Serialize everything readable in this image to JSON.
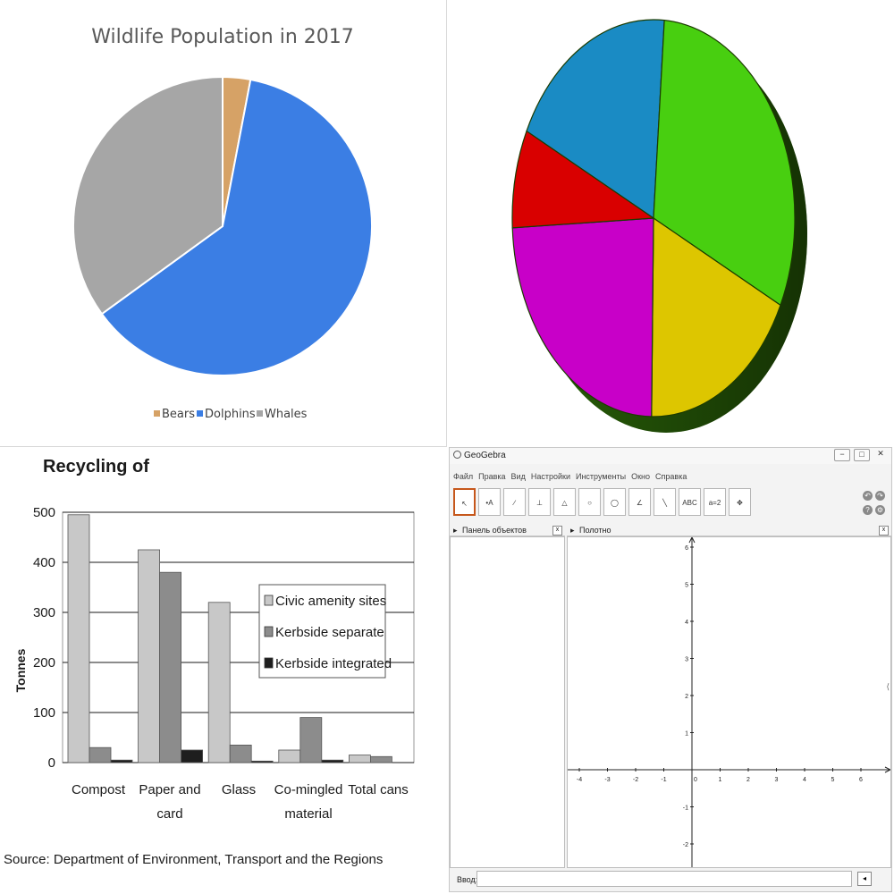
{
  "chart_data": [
    {
      "type": "pie",
      "title": "Wildlife Population in 2017",
      "categories": [
        "Bears",
        "Dolphins",
        "Whales"
      ],
      "values": [
        3,
        62,
        35
      ],
      "colors": [
        "#d6a266",
        "#3b7ee4",
        "#a6a6a6"
      ],
      "legend_position": "bottom"
    },
    {
      "type": "pie",
      "style": "3d",
      "title": "",
      "values": [
        19,
        31,
        18,
        24,
        8
      ],
      "colors": [
        "#1a8bc4",
        "#48cf10",
        "#ddc600",
        "#c800c8",
        "#d90000"
      ]
    },
    {
      "type": "bar",
      "title": "Recycling of",
      "ylabel": "Tonnes",
      "xlabel": "",
      "ylim": [
        0,
        500
      ],
      "yticks": [
        0,
        100,
        200,
        300,
        400,
        500
      ],
      "categories": [
        "Compost",
        "Paper and card",
        "Glass",
        "Co-mingled material",
        "Total cans"
      ],
      "series": [
        {
          "name": "Civic amenity sites",
          "values": [
            495,
            425,
            320,
            25,
            15
          ],
          "color": "#c8c8c8"
        },
        {
          "name": "Kerbside separate",
          "values": [
            30,
            380,
            35,
            90,
            12
          ],
          "color": "#8c8c8c"
        },
        {
          "name": "Kerbside integrated",
          "values": [
            5,
            25,
            3,
            5,
            0
          ],
          "color": "#1e1e1e"
        }
      ],
      "grid": true,
      "legend_position": "right",
      "source": "Source: Department of Environment, Transport and the Regions"
    }
  ],
  "geogebra": {
    "title": "GeoGebra",
    "window_buttons": [
      "−",
      "□",
      "✕"
    ],
    "menu": [
      "Файл",
      "Правка",
      "Вид",
      "Настройки",
      "Инструменты",
      "Окно",
      "Справка"
    ],
    "tools": [
      {
        "name": "move-tool-icon",
        "glyph": "↖"
      },
      {
        "name": "point-tool-icon",
        "glyph": "•A"
      },
      {
        "name": "line-tool-icon",
        "glyph": "∕"
      },
      {
        "name": "perpendicular-tool-icon",
        "glyph": "⊥"
      },
      {
        "name": "polygon-tool-icon",
        "glyph": "△"
      },
      {
        "name": "circle-tool-icon",
        "glyph": "○"
      },
      {
        "name": "conic-tool-icon",
        "glyph": "◯"
      },
      {
        "name": "angle-tool-icon",
        "glyph": "∠"
      },
      {
        "name": "reflect-tool-icon",
        "glyph": "╲"
      },
      {
        "name": "text-tool-icon",
        "glyph": "ABC"
      },
      {
        "name": "slider-tool-icon",
        "glyph": "a=2"
      },
      {
        "name": "move-view-tool-icon",
        "glyph": "✥"
      }
    ],
    "algebra_panel_title": "Панель объектов",
    "graphics_panel_title": "Полотно",
    "panel_close": "x",
    "input_label": "Ввод:",
    "input_value": "",
    "input_button": "◂",
    "axis": {
      "x_ticks": [
        -4,
        -3,
        -2,
        -1,
        0,
        1,
        2,
        3,
        4,
        5,
        6
      ],
      "y_ticks": [
        -2,
        -1,
        0,
        1,
        2,
        3,
        4,
        5,
        6
      ]
    }
  }
}
